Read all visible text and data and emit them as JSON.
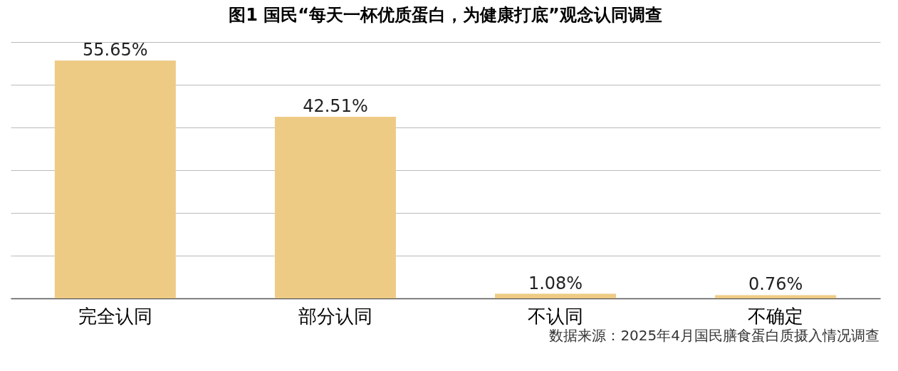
{
  "chart_data": {
    "type": "bar",
    "title": "图1 国民“每天一杯优质蛋白，为健康打底”观念认同调查",
    "categories": [
      "完全认同",
      "部分认同",
      "不认同",
      "不确定"
    ],
    "values": [
      55.65,
      42.51,
      1.08,
      0.76
    ],
    "value_labels": [
      "55.65%",
      "42.51%",
      "1.08%",
      "0.76%"
    ],
    "color": "#eecb85",
    "ylim": [
      0,
      60
    ],
    "yticks": [
      {
        "value": 0,
        "label": null
      },
      {
        "value": 10,
        "label": null
      },
      {
        "value": 20,
        "label": null
      },
      {
        "value": 30,
        "label": null
      },
      {
        "value": 40,
        "label": null
      },
      {
        "value": 50,
        "label": null
      },
      {
        "value": 60,
        "label": null
      }
    ],
    "grid": "y",
    "tick_labels": "x",
    "annotations": [
      "数据来源：2025年4月国民膳食蛋白质摄入情况调查"
    ]
  }
}
